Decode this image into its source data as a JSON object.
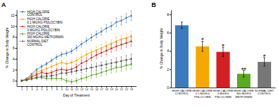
{
  "chart_data": [
    {
      "type": "line",
      "title": "A",
      "x_label": "Day of Treatment",
      "y_label": "% Change in Body Weight",
      "x": [
        1,
        2,
        3,
        4,
        5,
        6,
        7,
        8,
        9,
        10,
        11,
        12,
        13,
        14,
        15,
        16,
        17,
        18,
        19,
        20,
        21,
        22,
        23
      ],
      "xlim": [
        0,
        24
      ],
      "xticks": [
        1,
        2,
        3,
        4,
        5,
        6,
        7,
        8,
        9,
        10,
        11,
        12,
        13,
        14,
        15,
        16,
        17,
        18,
        19,
        20,
        21,
        22,
        23
      ],
      "ylim": [
        -1,
        13
      ],
      "yticks": [
        0,
        2,
        4,
        6,
        8,
        10,
        12
      ],
      "grid": false,
      "legend": "upper left",
      "series": [
        {
          "name": "HIGH CALORIE\nCONTROL",
          "color": "#3a7abf",
          "marker": "circle",
          "line_style": "solid",
          "values": [
            0.0,
            0.4,
            1.2,
            2.0,
            2.6,
            3.1,
            3.7,
            4.3,
            4.8,
            5.0,
            5.4,
            6.0,
            6.7,
            7.3,
            7.9,
            8.5,
            9.0,
            9.6,
            10.0,
            10.7,
            11.0,
            11.5,
            11.9
          ],
          "errors": [
            0.1,
            0.15,
            0.2,
            0.25,
            0.3,
            0.3,
            0.35,
            0.4,
            0.4,
            0.45,
            0.45,
            0.5,
            0.55,
            0.55,
            0.6,
            0.65,
            0.65,
            0.7,
            0.7,
            0.8,
            0.8,
            0.85,
            0.9
          ]
        },
        {
          "name": "HIGH CALORIE\n0.1 MG/KG PSILOCYBIN",
          "color": "#f5a800",
          "marker": "square",
          "line_style": "solid",
          "values": [
            0.0,
            0.3,
            0.9,
            1.5,
            1.9,
            2.2,
            2.6,
            3.0,
            3.3,
            3.1,
            3.3,
            3.7,
            4.3,
            4.8,
            5.2,
            5.6,
            6.0,
            6.4,
            6.8,
            7.2,
            7.6,
            7.8,
            8.2
          ],
          "errors": [
            0.1,
            0.15,
            0.2,
            0.25,
            0.3,
            0.3,
            0.35,
            0.4,
            0.4,
            0.45,
            0.45,
            0.5,
            0.55,
            0.55,
            0.6,
            0.65,
            0.65,
            0.7,
            0.7,
            0.8,
            0.8,
            0.85,
            0.9
          ]
        },
        {
          "name": "HIGH CALORIE\n3 MG/KG PSILOCYBIN",
          "color": "#d42020",
          "marker": "triangle",
          "line_style": "solid",
          "values": [
            0.0,
            0.2,
            0.7,
            1.1,
            1.5,
            1.3,
            1.5,
            1.9,
            2.1,
            1.9,
            2.1,
            2.5,
            3.2,
            3.6,
            4.2,
            4.7,
            5.1,
            5.5,
            5.9,
            6.3,
            6.6,
            6.9,
            7.2
          ],
          "errors": [
            0.1,
            0.15,
            0.2,
            0.25,
            0.3,
            0.3,
            0.35,
            0.4,
            0.4,
            0.45,
            0.45,
            0.5,
            0.55,
            0.55,
            0.6,
            0.65,
            0.65,
            0.7,
            0.7,
            0.8,
            0.8,
            0.85,
            0.9
          ]
        },
        {
          "name": "HIGH CALORIE\n300 MG/KG METFORMIN",
          "color": "#5aaa20",
          "marker": "diamond",
          "line_style": "solid",
          "values": [
            0.0,
            0.1,
            0.3,
            0.5,
            0.6,
            0.4,
            0.4,
            0.4,
            0.4,
            0.0,
            -0.2,
            0.0,
            0.4,
            0.6,
            1.0,
            1.2,
            1.5,
            1.8,
            2.1,
            2.4,
            2.5,
            2.8,
            3.0
          ],
          "errors": [
            0.1,
            0.15,
            0.2,
            0.25,
            0.3,
            0.3,
            0.35,
            0.4,
            0.4,
            0.45,
            0.45,
            0.5,
            0.55,
            0.55,
            0.6,
            0.65,
            0.65,
            0.7,
            0.7,
            0.8,
            0.8,
            0.85,
            0.9
          ]
        },
        {
          "name": "NORMAL DIET\nCONTROL",
          "color": "#555555",
          "marker": "circle",
          "line_style": "dashed",
          "values": [
            0.0,
            0.15,
            0.4,
            0.6,
            0.8,
            0.8,
            0.9,
            1.1,
            1.4,
            1.4,
            1.6,
            1.8,
            2.0,
            2.2,
            2.4,
            2.6,
            2.8,
            3.0,
            3.2,
            3.4,
            3.6,
            3.8,
            4.0
          ],
          "errors": [
            0.1,
            0.15,
            0.2,
            0.25,
            0.3,
            0.3,
            0.35,
            0.4,
            0.4,
            0.45,
            0.45,
            0.5,
            0.55,
            0.55,
            0.6,
            0.65,
            0.65,
            0.7,
            0.7,
            0.8,
            0.8,
            0.85,
            0.9
          ]
        }
      ]
    },
    {
      "type": "bar",
      "title": "B",
      "y_label": "% Change in Body Weight",
      "categories": [
        "HIGH CALORIE\nCONTROL",
        "HIGH CALORIE\n0.1 MG/KG\nPSILOCYBIN",
        "HIGH CALORIE\n3 MG/KG\nPSILOCYBIN",
        "HIGH CALORIE\n300 MG/KG\nMETFORMIN",
        "NORMAL DIET\nCONTROL"
      ],
      "values": [
        6.8,
        4.5,
        3.9,
        1.5,
        2.8
      ],
      "errors": [
        0.35,
        0.55,
        0.5,
        0.35,
        0.45
      ],
      "colors": [
        "#3a7abf",
        "#f5a800",
        "#d42020",
        "#5aaa20",
        "#777777"
      ],
      "significance": [
        null,
        "#",
        "#",
        "##",
        "#"
      ],
      "ylim": [
        0,
        8.5
      ],
      "yticks": [
        0,
        2,
        4,
        6,
        8
      ],
      "grid": false
    }
  ]
}
